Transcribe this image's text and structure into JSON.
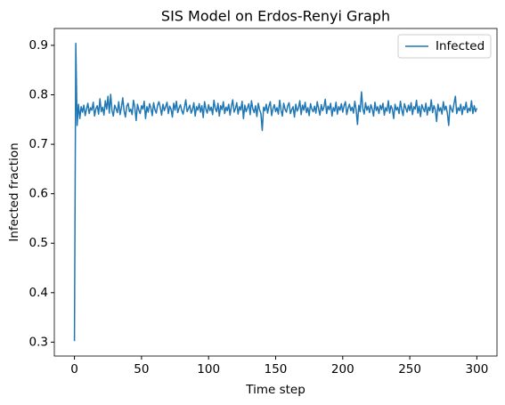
{
  "chart_data": {
    "type": "line",
    "title": "SIS Model on Erdos-Renyi Graph",
    "x_label": "Time step",
    "y_label": "Infected fraction",
    "x": [
      0,
      1,
      2,
      3,
      4,
      5,
      6,
      7,
      8,
      9,
      10,
      11,
      12,
      13,
      14,
      15,
      16,
      17,
      18,
      19,
      20,
      21,
      22,
      23,
      24,
      25,
      26,
      27,
      28,
      29,
      30,
      31,
      32,
      33,
      34,
      35,
      36,
      37,
      38,
      39,
      40,
      41,
      42,
      43,
      44,
      45,
      46,
      47,
      48,
      49,
      50,
      51,
      52,
      53,
      54,
      55,
      56,
      57,
      58,
      59,
      60,
      61,
      62,
      63,
      64,
      65,
      66,
      67,
      68,
      69,
      70,
      71,
      72,
      73,
      74,
      75,
      76,
      77,
      78,
      79,
      80,
      81,
      82,
      83,
      84,
      85,
      86,
      87,
      88,
      89,
      90,
      91,
      92,
      93,
      94,
      95,
      96,
      97,
      98,
      99,
      100,
      101,
      102,
      103,
      104,
      105,
      106,
      107,
      108,
      109,
      110,
      111,
      112,
      113,
      114,
      115,
      116,
      117,
      118,
      119,
      120,
      121,
      122,
      123,
      124,
      125,
      126,
      127,
      128,
      129,
      130,
      131,
      132,
      133,
      134,
      135,
      136,
      137,
      138,
      139,
      140,
      141,
      142,
      143,
      144,
      145,
      146,
      147,
      148,
      149,
      150,
      151,
      152,
      153,
      154,
      155,
      156,
      157,
      158,
      159,
      160,
      161,
      162,
      163,
      164,
      165,
      166,
      167,
      168,
      169,
      170,
      171,
      172,
      173,
      174,
      175,
      176,
      177,
      178,
      179,
      180,
      181,
      182,
      183,
      184,
      185,
      186,
      187,
      188,
      189,
      190,
      191,
      192,
      193,
      194,
      195,
      196,
      197,
      198,
      199,
      200,
      201,
      202,
      203,
      204,
      205,
      206,
      207,
      208,
      209,
      210,
      211,
      212,
      213,
      214,
      215,
      216,
      217,
      218,
      219,
      220,
      221,
      222,
      223,
      224,
      225,
      226,
      227,
      228,
      229,
      230,
      231,
      232,
      233,
      234,
      235,
      236,
      237,
      238,
      239,
      240,
      241,
      242,
      243,
      244,
      245,
      246,
      247,
      248,
      249,
      250,
      251,
      252,
      253,
      254,
      255,
      256,
      257,
      258,
      259,
      260,
      261,
      262,
      263,
      264,
      265,
      266,
      267,
      268,
      269,
      270,
      271,
      272,
      273,
      274,
      275,
      276,
      277,
      278,
      279,
      280,
      281,
      282,
      283,
      284,
      285,
      286,
      287,
      288,
      289,
      290,
      291,
      292,
      293,
      294,
      295,
      296,
      297,
      298,
      299,
      300
    ],
    "series": [
      {
        "name": "Infected",
        "color": "#1f77b4",
        "values": [
          0.302,
          0.904,
          0.738,
          0.781,
          0.752,
          0.776,
          0.765,
          0.779,
          0.758,
          0.771,
          0.783,
          0.762,
          0.774,
          0.769,
          0.785,
          0.757,
          0.772,
          0.778,
          0.761,
          0.792,
          0.766,
          0.775,
          0.759,
          0.788,
          0.771,
          0.797,
          0.763,
          0.801,
          0.768,
          0.757,
          0.779,
          0.772,
          0.764,
          0.786,
          0.76,
          0.774,
          0.794,
          0.768,
          0.755,
          0.777,
          0.783,
          0.766,
          0.771,
          0.76,
          0.789,
          0.775,
          0.748,
          0.781,
          0.769,
          0.762,
          0.778,
          0.771,
          0.787,
          0.752,
          0.776,
          0.765,
          0.782,
          0.773,
          0.758,
          0.784,
          0.77,
          0.763,
          0.779,
          0.786,
          0.774,
          0.759,
          0.781,
          0.768,
          0.776,
          0.785,
          0.762,
          0.777,
          0.771,
          0.755,
          0.783,
          0.769,
          0.787,
          0.764,
          0.773,
          0.78,
          0.768,
          0.761,
          0.775,
          0.79,
          0.766,
          0.772,
          0.779,
          0.763,
          0.77,
          0.784,
          0.757,
          0.776,
          0.769,
          0.782,
          0.765,
          0.778,
          0.754,
          0.786,
          0.771,
          0.763,
          0.78,
          0.768,
          0.775,
          0.76,
          0.789,
          0.772,
          0.766,
          0.783,
          0.757,
          0.778,
          0.77,
          0.786,
          0.762,
          0.775,
          0.768,
          0.781,
          0.759,
          0.777,
          0.79,
          0.765,
          0.772,
          0.784,
          0.761,
          0.776,
          0.769,
          0.787,
          0.752,
          0.779,
          0.766,
          0.774,
          0.782,
          0.76,
          0.788,
          0.771,
          0.764,
          0.778,
          0.756,
          0.783,
          0.77,
          0.762,
          0.728,
          0.775,
          0.768,
          0.781,
          0.763,
          0.777,
          0.786,
          0.758,
          0.772,
          0.78,
          0.766,
          0.774,
          0.761,
          0.789,
          0.769,
          0.757,
          0.783,
          0.771,
          0.765,
          0.778,
          0.784,
          0.762,
          0.77,
          0.776,
          0.755,
          0.781,
          0.767,
          0.773,
          0.788,
          0.76,
          0.779,
          0.769,
          0.785,
          0.764,
          0.774,
          0.758,
          0.782,
          0.771,
          0.766,
          0.777,
          0.763,
          0.786,
          0.772,
          0.759,
          0.78,
          0.768,
          0.775,
          0.791,
          0.762,
          0.777,
          0.77,
          0.783,
          0.757,
          0.774,
          0.767,
          0.785,
          0.761,
          0.776,
          0.769,
          0.782,
          0.765,
          0.778,
          0.786,
          0.76,
          0.773,
          0.781,
          0.768,
          0.775,
          0.763,
          0.787,
          0.77,
          0.74,
          0.779,
          0.766,
          0.806,
          0.772,
          0.761,
          0.784,
          0.769,
          0.777,
          0.764,
          0.78,
          0.771,
          0.757,
          0.785,
          0.768,
          0.776,
          0.762,
          0.779,
          0.77,
          0.783,
          0.759,
          0.774,
          0.767,
          0.788,
          0.763,
          0.778,
          0.771,
          0.752,
          0.781,
          0.769,
          0.775,
          0.762,
          0.787,
          0.77,
          0.758,
          0.782,
          0.773,
          0.765,
          0.779,
          0.768,
          0.784,
          0.76,
          0.776,
          0.771,
          0.789,
          0.763,
          0.777,
          0.756,
          0.78,
          0.772,
          0.766,
          0.783,
          0.759,
          0.775,
          0.768,
          0.79,
          0.764,
          0.778,
          0.77,
          0.746,
          0.781,
          0.767,
          0.774,
          0.761,
          0.786,
          0.769,
          0.777,
          0.763,
          0.738,
          0.779,
          0.771,
          0.765,
          0.783,
          0.797,
          0.762,
          0.774,
          0.768,
          0.781,
          0.76,
          0.776,
          0.77,
          0.785,
          0.764,
          0.773,
          0.767,
          0.788,
          0.762,
          0.778,
          0.766,
          0.773
        ]
      }
    ],
    "xlim": [
      -15,
      315
    ],
    "xticks": [
      0,
      50,
      100,
      150,
      200,
      250,
      300
    ],
    "ylim": [
      0.2719,
      0.9341
    ],
    "yticks": [
      0.3,
      0.4,
      0.5,
      0.6,
      0.7,
      0.8,
      0.9
    ],
    "grid": false,
    "legend": "upper right"
  }
}
